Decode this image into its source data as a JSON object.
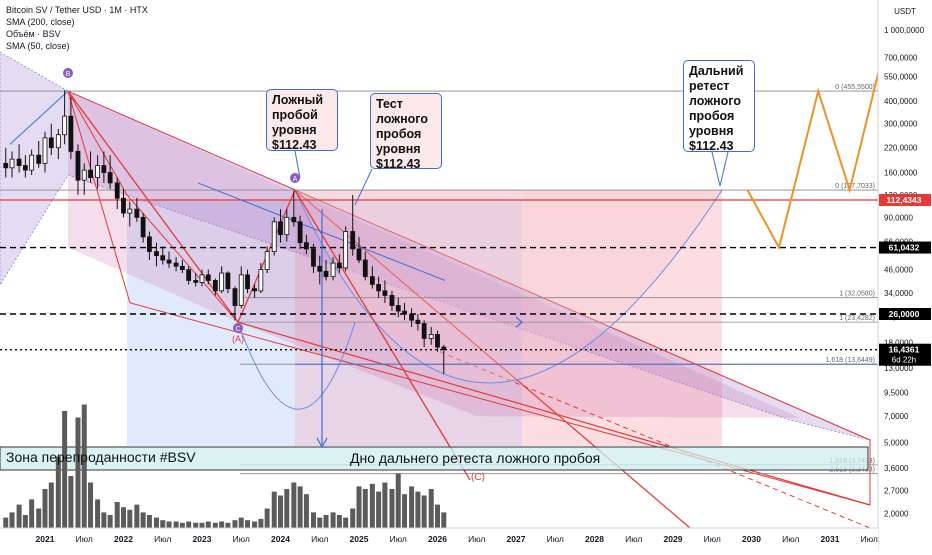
{
  "window": {
    "legend": {
      "title": "Bitcoin SV / Tether USD · 1M · HTX",
      "sma200": "SMA (200, close)",
      "volume": "Объём · BSV",
      "sma50": "SMA (50, close)"
    },
    "currency": "USDT"
  },
  "annotations": {
    "false_breakout": "Ложный\nпробой\nуровня\n$112.43",
    "retest": "Тест\nложного\nпробоя\nуровня\n$112.43",
    "far_retest": "Дальний\nретест\nложного\nпробоя\nуровня\n$112.43",
    "oversold_zone": "Зона перепроданности #BSV",
    "bottom_label": "Дно дальнего ретеста ложного пробоя",
    "pivot_b": "B",
    "pivot_c": "C",
    "pivot_c_red": "(C)",
    "pivot_a_red": "(A)"
  },
  "price_levels": [
    {
      "value": 112.4343,
      "label": "112,4343",
      "style": "solid",
      "color": "#e53935"
    },
    {
      "value": 61.0432,
      "label": "61,0432",
      "style": "dashed",
      "color": "#000000"
    },
    {
      "value": 26.0,
      "label": "26,0000",
      "style": "dashed",
      "color": "#000000"
    },
    {
      "value": 16.4361,
      "label": "16,4361",
      "sublabel": "6d 22h",
      "style": "last",
      "color": "#000000"
    }
  ],
  "fib_labels": [
    {
      "value": 455.55,
      "text": "0 (455,5500)"
    },
    {
      "value": 127.7033,
      "text": "0 (127,7033)"
    },
    {
      "value": 32.058,
      "text": "1 (32,0580)"
    },
    {
      "value": 23.4282,
      "text": "1 (23,4282)"
    },
    {
      "value": 13.6449,
      "text": "1,618 (13,6449)"
    },
    {
      "value": 3.7433,
      "text": "1,618 (3,7433)"
    },
    {
      "value": 3.3433,
      "text": "2,618 (3,3433)"
    }
  ],
  "chart_data": {
    "type": "candlestick",
    "x_axis_labels": [
      {
        "t": 2021.0,
        "label": "2021"
      },
      {
        "t": 2021.5,
        "label": "Июл"
      },
      {
        "t": 2022.0,
        "label": "2022"
      },
      {
        "t": 2022.5,
        "label": "Июл"
      },
      {
        "t": 2023.0,
        "label": "2023"
      },
      {
        "t": 2023.5,
        "label": "Июл"
      },
      {
        "t": 2024.0,
        "label": "2024"
      },
      {
        "t": 2024.5,
        "label": "Июл"
      },
      {
        "t": 2025.0,
        "label": "2025"
      },
      {
        "t": 2025.5,
        "label": "Июл"
      },
      {
        "t": 2026.0,
        "label": "2026"
      },
      {
        "t": 2026.5,
        "label": "Июл"
      },
      {
        "t": 2027.0,
        "label": "2027"
      },
      {
        "t": 2027.5,
        "label": "Июл"
      },
      {
        "t": 2028.0,
        "label": "2028"
      },
      {
        "t": 2028.5,
        "label": "Июл"
      },
      {
        "t": 2029.0,
        "label": "2029"
      },
      {
        "t": 2029.5,
        "label": "Июл"
      },
      {
        "t": 2030.0,
        "label": "2030"
      },
      {
        "t": 2030.5,
        "label": "Июл"
      },
      {
        "t": 2031.0,
        "label": "2031"
      },
      {
        "t": 2031.5,
        "label": "Июл"
      }
    ],
    "y_axis": {
      "scale": "log",
      "ticks": [
        {
          "v": 1000000,
          "label": "1 000,0000"
        },
        {
          "v": 700000,
          "label": "700,0000"
        },
        {
          "v": 550000,
          "label": "550,0000"
        },
        {
          "v": 400000,
          "label": "400,0000"
        },
        {
          "v": 300000,
          "label": "300,0000"
        },
        {
          "v": 220000,
          "label": "220,0000"
        },
        {
          "v": 160000,
          "label": "160,0000"
        },
        {
          "v": 120000,
          "label": "120,0000"
        },
        {
          "v": 90000,
          "label": "90,0000"
        },
        {
          "v": 66000,
          "label": "66,0000"
        },
        {
          "v": 46000,
          "label": "46,0000"
        },
        {
          "v": 34000,
          "label": "34,0000"
        },
        {
          "v": 25000,
          "label": "25,0000"
        },
        {
          "v": 18000,
          "label": "18,0000"
        },
        {
          "v": 13000,
          "label": "13,0000"
        },
        {
          "v": 9500,
          "label": "9,5000"
        },
        {
          "v": 7000,
          "label": "7,0000"
        },
        {
          "v": 5000,
          "label": "5,0000"
        },
        {
          "v": 3600,
          "label": "3,6000"
        },
        {
          "v": 2700,
          "label": "2,7000"
        },
        {
          "v": 2000,
          "label": "2,0000"
        }
      ]
    },
    "candles": [
      {
        "t": 2020.5,
        "o": 180,
        "h": 220,
        "l": 150,
        "c": 170
      },
      {
        "t": 2020.58,
        "o": 170,
        "h": 210,
        "l": 150,
        "c": 190
      },
      {
        "t": 2020.67,
        "o": 190,
        "h": 230,
        "l": 160,
        "c": 175
      },
      {
        "t": 2020.75,
        "o": 175,
        "h": 200,
        "l": 150,
        "c": 165
      },
      {
        "t": 2020.83,
        "o": 165,
        "h": 215,
        "l": 155,
        "c": 200
      },
      {
        "t": 2020.92,
        "o": 200,
        "h": 240,
        "l": 170,
        "c": 180
      },
      {
        "t": 2021.0,
        "o": 180,
        "h": 270,
        "l": 160,
        "c": 250
      },
      {
        "t": 2021.08,
        "o": 250,
        "h": 300,
        "l": 200,
        "c": 220
      },
      {
        "t": 2021.17,
        "o": 220,
        "h": 280,
        "l": 190,
        "c": 260
      },
      {
        "t": 2021.25,
        "o": 260,
        "h": 460,
        "l": 230,
        "c": 330
      },
      {
        "t": 2021.33,
        "o": 330,
        "h": 420,
        "l": 190,
        "c": 210
      },
      {
        "t": 2021.42,
        "o": 210,
        "h": 230,
        "l": 120,
        "c": 145
      },
      {
        "t": 2021.5,
        "o": 145,
        "h": 180,
        "l": 120,
        "c": 165
      },
      {
        "t": 2021.58,
        "o": 165,
        "h": 210,
        "l": 140,
        "c": 150
      },
      {
        "t": 2021.67,
        "o": 150,
        "h": 200,
        "l": 130,
        "c": 175
      },
      {
        "t": 2021.75,
        "o": 175,
        "h": 210,
        "l": 140,
        "c": 160
      },
      {
        "t": 2021.83,
        "o": 160,
        "h": 200,
        "l": 130,
        "c": 140
      },
      {
        "t": 2021.92,
        "o": 140,
        "h": 150,
        "l": 100,
        "c": 115
      },
      {
        "t": 2022.0,
        "o": 115,
        "h": 130,
        "l": 90,
        "c": 95
      },
      {
        "t": 2022.08,
        "o": 95,
        "h": 110,
        "l": 80,
        "c": 100
      },
      {
        "t": 2022.17,
        "o": 100,
        "h": 115,
        "l": 85,
        "c": 90
      },
      {
        "t": 2022.25,
        "o": 90,
        "h": 95,
        "l": 65,
        "c": 70
      },
      {
        "t": 2022.33,
        "o": 70,
        "h": 75,
        "l": 52,
        "c": 58
      },
      {
        "t": 2022.42,
        "o": 58,
        "h": 65,
        "l": 48,
        "c": 55
      },
      {
        "t": 2022.5,
        "o": 55,
        "h": 62,
        "l": 49,
        "c": 52
      },
      {
        "t": 2022.58,
        "o": 52,
        "h": 58,
        "l": 47,
        "c": 50
      },
      {
        "t": 2022.67,
        "o": 50,
        "h": 54,
        "l": 45,
        "c": 48
      },
      {
        "t": 2022.75,
        "o": 48,
        "h": 52,
        "l": 44,
        "c": 46
      },
      {
        "t": 2022.83,
        "o": 46,
        "h": 48,
        "l": 38,
        "c": 40
      },
      {
        "t": 2022.92,
        "o": 40,
        "h": 44,
        "l": 37,
        "c": 39
      },
      {
        "t": 2023.0,
        "o": 39,
        "h": 46,
        "l": 37,
        "c": 43
      },
      {
        "t": 2023.08,
        "o": 43,
        "h": 46,
        "l": 38,
        "c": 40
      },
      {
        "t": 2023.17,
        "o": 40,
        "h": 41,
        "l": 33,
        "c": 35
      },
      {
        "t": 2023.25,
        "o": 35,
        "h": 48,
        "l": 34,
        "c": 44
      },
      {
        "t": 2023.33,
        "o": 44,
        "h": 45,
        "l": 34,
        "c": 36
      },
      {
        "t": 2023.42,
        "o": 36,
        "h": 37,
        "l": 24,
        "c": 29
      },
      {
        "t": 2023.5,
        "o": 29,
        "h": 48,
        "l": 28,
        "c": 43
      },
      {
        "t": 2023.58,
        "o": 43,
        "h": 46,
        "l": 34,
        "c": 36
      },
      {
        "t": 2023.67,
        "o": 36,
        "h": 38,
        "l": 32,
        "c": 35
      },
      {
        "t": 2023.75,
        "o": 35,
        "h": 50,
        "l": 34,
        "c": 46
      },
      {
        "t": 2023.83,
        "o": 46,
        "h": 62,
        "l": 44,
        "c": 58
      },
      {
        "t": 2023.92,
        "o": 58,
        "h": 90,
        "l": 55,
        "c": 85
      },
      {
        "t": 2024.0,
        "o": 85,
        "h": 100,
        "l": 65,
        "c": 72
      },
      {
        "t": 2024.08,
        "o": 72,
        "h": 100,
        "l": 66,
        "c": 90
      },
      {
        "t": 2024.17,
        "o": 90,
        "h": 127,
        "l": 80,
        "c": 85
      },
      {
        "t": 2024.25,
        "o": 85,
        "h": 92,
        "l": 60,
        "c": 65
      },
      {
        "t": 2024.33,
        "o": 65,
        "h": 72,
        "l": 56,
        "c": 60
      },
      {
        "t": 2024.42,
        "o": 60,
        "h": 64,
        "l": 44,
        "c": 48
      },
      {
        "t": 2024.5,
        "o": 48,
        "h": 55,
        "l": 38,
        "c": 45
      },
      {
        "t": 2024.58,
        "o": 45,
        "h": 52,
        "l": 40,
        "c": 42
      },
      {
        "t": 2024.67,
        "o": 42,
        "h": 54,
        "l": 40,
        "c": 50
      },
      {
        "t": 2024.75,
        "o": 50,
        "h": 56,
        "l": 44,
        "c": 47
      },
      {
        "t": 2024.83,
        "o": 47,
        "h": 80,
        "l": 45,
        "c": 75
      },
      {
        "t": 2024.92,
        "o": 75,
        "h": 120,
        "l": 55,
        "c": 60
      },
      {
        "t": 2025.0,
        "o": 60,
        "h": 70,
        "l": 50,
        "c": 52
      },
      {
        "t": 2025.08,
        "o": 52,
        "h": 58,
        "l": 40,
        "c": 42
      },
      {
        "t": 2025.17,
        "o": 42,
        "h": 48,
        "l": 36,
        "c": 38
      },
      {
        "t": 2025.25,
        "o": 38,
        "h": 42,
        "l": 32,
        "c": 35
      },
      {
        "t": 2025.33,
        "o": 35,
        "h": 40,
        "l": 30,
        "c": 33
      },
      {
        "t": 2025.42,
        "o": 33,
        "h": 35,
        "l": 27,
        "c": 29
      },
      {
        "t": 2025.5,
        "o": 29,
        "h": 32,
        "l": 25,
        "c": 27
      },
      {
        "t": 2025.58,
        "o": 27,
        "h": 30,
        "l": 24,
        "c": 26
      },
      {
        "t": 2025.67,
        "o": 26,
        "h": 28,
        "l": 22,
        "c": 24
      },
      {
        "t": 2025.75,
        "o": 24,
        "h": 26,
        "l": 21,
        "c": 23
      },
      {
        "t": 2025.83,
        "o": 23,
        "h": 24,
        "l": 17,
        "c": 19
      },
      {
        "t": 2025.92,
        "o": 19,
        "h": 22,
        "l": 17.5,
        "c": 20
      },
      {
        "t": 2026.0,
        "o": 20,
        "h": 21,
        "l": 16,
        "c": 17
      },
      {
        "t": 2026.08,
        "o": 17,
        "h": 17.5,
        "l": 12,
        "c": 16.4361
      }
    ],
    "volume": [
      {
        "t": 2020.5,
        "v": 0.08
      },
      {
        "t": 2020.58,
        "v": 0.12
      },
      {
        "t": 2020.67,
        "v": 0.18
      },
      {
        "t": 2020.75,
        "v": 0.1
      },
      {
        "t": 2020.83,
        "v": 0.22
      },
      {
        "t": 2020.92,
        "v": 0.15
      },
      {
        "t": 2021.0,
        "v": 0.3
      },
      {
        "t": 2021.08,
        "v": 0.35
      },
      {
        "t": 2021.17,
        "v": 0.55
      },
      {
        "t": 2021.25,
        "v": 0.9
      },
      {
        "t": 2021.33,
        "v": 0.4
      },
      {
        "t": 2021.42,
        "v": 0.85
      },
      {
        "t": 2021.5,
        "v": 0.95
      },
      {
        "t": 2021.58,
        "v": 0.35
      },
      {
        "t": 2021.67,
        "v": 0.22
      },
      {
        "t": 2021.75,
        "v": 0.12
      },
      {
        "t": 2021.83,
        "v": 0.1
      },
      {
        "t": 2021.92,
        "v": 0.2
      },
      {
        "t": 2022.0,
        "v": 0.16
      },
      {
        "t": 2022.08,
        "v": 0.14
      },
      {
        "t": 2022.17,
        "v": 0.18
      },
      {
        "t": 2022.25,
        "v": 0.12
      },
      {
        "t": 2022.33,
        "v": 0.1
      },
      {
        "t": 2022.42,
        "v": 0.08
      },
      {
        "t": 2022.5,
        "v": 0.06
      },
      {
        "t": 2022.58,
        "v": 0.05
      },
      {
        "t": 2022.67,
        "v": 0.05
      },
      {
        "t": 2022.75,
        "v": 0.04
      },
      {
        "t": 2022.83,
        "v": 0.05
      },
      {
        "t": 2022.92,
        "v": 0.04
      },
      {
        "t": 2023.0,
        "v": 0.04
      },
      {
        "t": 2023.08,
        "v": 0.05
      },
      {
        "t": 2023.17,
        "v": 0.04
      },
      {
        "t": 2023.25,
        "v": 0.05
      },
      {
        "t": 2023.33,
        "v": 0.04
      },
      {
        "t": 2023.42,
        "v": 0.06
      },
      {
        "t": 2023.5,
        "v": 0.08
      },
      {
        "t": 2023.58,
        "v": 0.06
      },
      {
        "t": 2023.67,
        "v": 0.05
      },
      {
        "t": 2023.75,
        "v": 0.07
      },
      {
        "t": 2023.83,
        "v": 0.15
      },
      {
        "t": 2023.92,
        "v": 0.28
      },
      {
        "t": 2024.0,
        "v": 0.25
      },
      {
        "t": 2024.08,
        "v": 0.3
      },
      {
        "t": 2024.17,
        "v": 0.35
      },
      {
        "t": 2024.25,
        "v": 0.32
      },
      {
        "t": 2024.33,
        "v": 0.26
      },
      {
        "t": 2024.42,
        "v": 0.12
      },
      {
        "t": 2024.5,
        "v": 0.08
      },
      {
        "t": 2024.58,
        "v": 0.1
      },
      {
        "t": 2024.67,
        "v": 0.12
      },
      {
        "t": 2024.75,
        "v": 0.1
      },
      {
        "t": 2024.83,
        "v": 0.08
      },
      {
        "t": 2024.92,
        "v": 0.15
      },
      {
        "t": 2025.0,
        "v": 0.32
      },
      {
        "t": 2025.08,
        "v": 0.3
      },
      {
        "t": 2025.17,
        "v": 0.34
      },
      {
        "t": 2025.25,
        "v": 0.28
      },
      {
        "t": 2025.33,
        "v": 0.35
      },
      {
        "t": 2025.42,
        "v": 0.3
      },
      {
        "t": 2025.5,
        "v": 0.42
      },
      {
        "t": 2025.58,
        "v": 0.26
      },
      {
        "t": 2025.67,
        "v": 0.32
      },
      {
        "t": 2025.75,
        "v": 0.28
      },
      {
        "t": 2025.83,
        "v": 0.25
      },
      {
        "t": 2025.92,
        "v": 0.3
      },
      {
        "t": 2026.0,
        "v": 0.18
      },
      {
        "t": 2026.08,
        "v": 0.12
      }
    ],
    "forecast_path": [
      {
        "t": 2029.95,
        "v": 127.7
      },
      {
        "t": 2030.35,
        "v": 61.04
      },
      {
        "t": 2030.85,
        "v": 455.55
      },
      {
        "t": 2031.25,
        "v": 127.7
      },
      {
        "t": 2031.75,
        "v": 1000000
      }
    ]
  }
}
